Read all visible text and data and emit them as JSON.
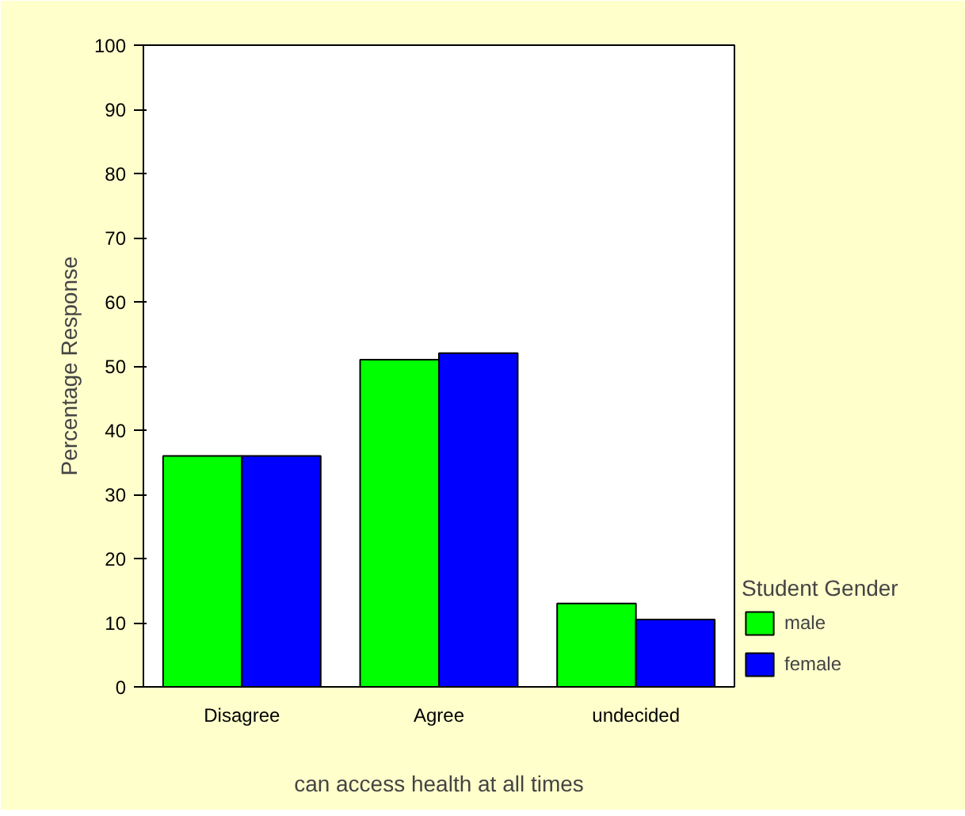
{
  "chart_data": {
    "type": "bar",
    "xlabel": "can access health at all times",
    "ylabel": "Percentage Response",
    "legend_title": "Student Gender",
    "categories": [
      "Disagree",
      "Agree",
      "undecided"
    ],
    "series": [
      {
        "name": "male",
        "color": "#00ff00",
        "values": [
          36,
          51,
          13
        ]
      },
      {
        "name": "female",
        "color": "#0000ff",
        "values": [
          36,
          52,
          10.5
        ]
      }
    ],
    "ylim": [
      0,
      100
    ],
    "yticks": [
      0,
      10,
      20,
      30,
      40,
      50,
      60,
      70,
      80,
      90,
      100
    ],
    "grid": false,
    "legend": "right"
  }
}
